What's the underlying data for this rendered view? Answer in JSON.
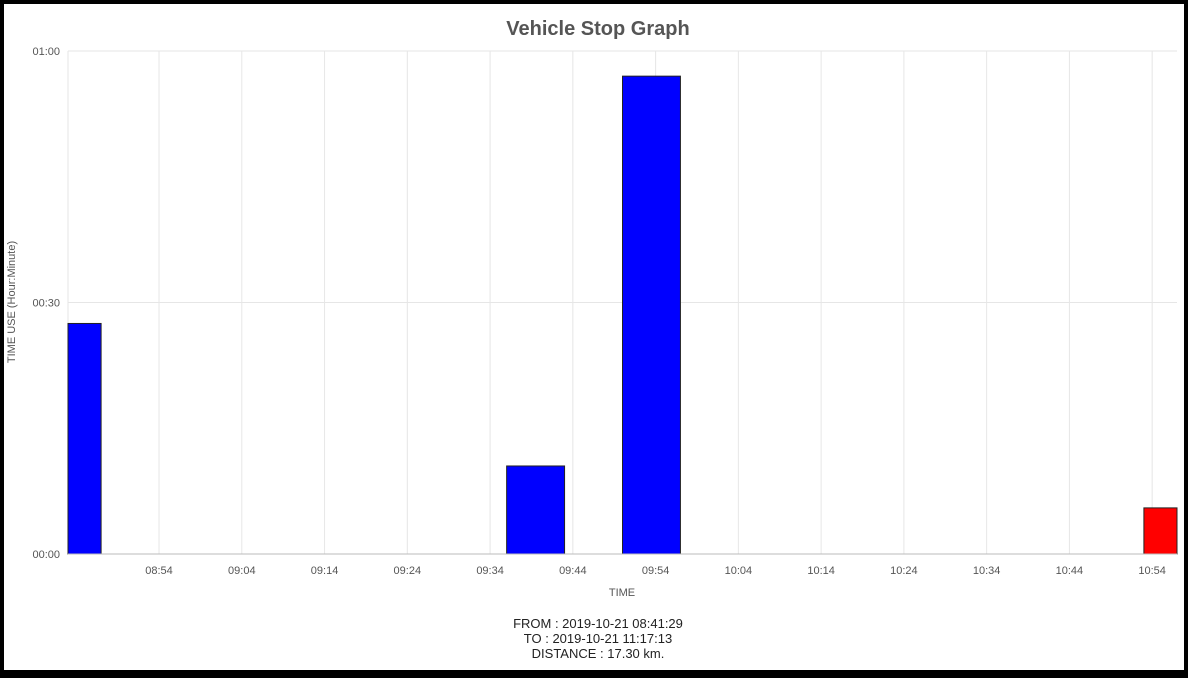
{
  "colors": {
    "normal_bar": "#0000ff",
    "alert_bar": "#ff0000",
    "grid": "#e6e6e6",
    "axis_text": "#555555"
  },
  "chart_data": {
    "type": "bar",
    "title": "Vehicle Stop Graph",
    "xlabel": "TIME",
    "ylabel": "TIME USE (Hour:Minute)",
    "x_range": [
      "08:43",
      "10:57"
    ],
    "x_ticks": [
      "08:54",
      "09:04",
      "09:14",
      "09:24",
      "09:34",
      "09:44",
      "09:54",
      "10:04",
      "10:14",
      "10:24",
      "10:34",
      "10:44",
      "10:54"
    ],
    "y_ticks": [
      "00:00",
      "00:30",
      "01:00"
    ],
    "ylim_minutes": [
      0,
      60
    ],
    "grid": true,
    "bars": [
      {
        "start": "08:43",
        "end": "08:47",
        "duration_minutes": 27.5,
        "color": "#0000ff"
      },
      {
        "start": "09:36",
        "end": "09:43",
        "duration_minutes": 10.5,
        "color": "#0000ff"
      },
      {
        "start": "09:50",
        "end": "09:57",
        "duration_minutes": 57,
        "color": "#0000ff"
      },
      {
        "start": "10:53",
        "end": "10:57",
        "duration_minutes": 5.5,
        "color": "#ff0000"
      }
    ]
  },
  "footer": {
    "from": "FROM : 2019-10-21 08:41:29",
    "to": "TO : 2019-10-21 11:17:13",
    "distance": "DISTANCE : 17.30 km."
  }
}
